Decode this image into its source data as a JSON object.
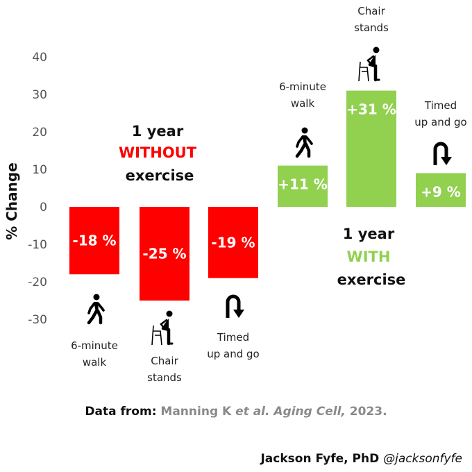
{
  "chart_data": {
    "type": "bar",
    "ylabel": "% Change",
    "ylim": [
      -30,
      40
    ],
    "yticks": [
      40,
      30,
      20,
      10,
      0,
      -10,
      -20,
      -30
    ],
    "grid": false,
    "groups": [
      {
        "title": "1 year",
        "highlight": "WITHOUT",
        "subtitle": "exercise",
        "color": "#ff0000",
        "bars": [
          {
            "category_line1": "6-minute",
            "category_line2": "walk",
            "value": -18,
            "label": "-18 %",
            "icon": "walking-person-icon"
          },
          {
            "category_line1": "Chair",
            "category_line2": "stands",
            "value": -25,
            "label": "-25 %",
            "icon": "chair-stand-icon"
          },
          {
            "category_line1": "Timed",
            "category_line2": "up and go",
            "value": -19,
            "label": "-19 %",
            "icon": "u-turn-arrow-icon"
          }
        ]
      },
      {
        "title": "1 year",
        "highlight": "WITH",
        "subtitle": "exercise",
        "color": "#92d050",
        "bars": [
          {
            "category_line1": "6-minute",
            "category_line2": "walk",
            "value": 11,
            "label": "+11 %",
            "icon": "walking-person-icon"
          },
          {
            "category_line1": "Chair",
            "category_line2": "stands",
            "value": 31,
            "label": "+31 %",
            "icon": "chair-stand-icon"
          },
          {
            "category_line1": "Timed",
            "category_line2": "up and go",
            "value": 9,
            "label": "+9 %",
            "icon": "u-turn-arrow-icon"
          }
        ]
      }
    ]
  },
  "source": {
    "prefix": "Data from:",
    "authors": "Manning K",
    "etal": "et al.",
    "journal": "Aging Cell,",
    "year": "2023."
  },
  "credit": {
    "name": "Jackson Fyfe, PhD",
    "handle": "@jacksonfyfe"
  }
}
